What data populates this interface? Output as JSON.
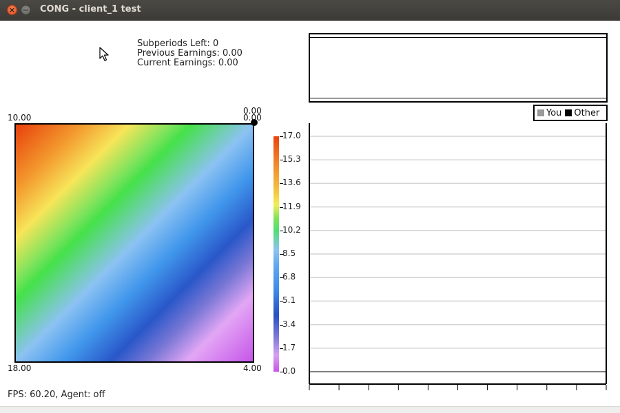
{
  "window": {
    "title": "CONG - client_1 test",
    "close_glyph": "×",
    "minimize_glyph": "−"
  },
  "info": {
    "subperiods_left": "Subperiods Left: 0",
    "previous_earnings": "Previous Earnings: 0.00",
    "current_earnings": "Current Earnings: 0.00"
  },
  "heatmap": {
    "top_left_label": "10.00",
    "top_right_label_1": "0.00",
    "top_right_label_2": "0.00",
    "bottom_left_label": "18.00",
    "bottom_right_label": "4.00",
    "colors": {
      "high": "#e8400c",
      "mid": "#45e14a",
      "low": "#c655e9"
    }
  },
  "colorbar": {
    "ticks": [
      "17.0",
      "15.3",
      "13.6",
      "11.9",
      "10.2",
      "8.5",
      "6.8",
      "5.1",
      "3.4",
      "1.7",
      "0.0"
    ]
  },
  "legend": {
    "you_label": "You",
    "other_label": "Other",
    "you_color": "#999999",
    "other_color": "#000000"
  },
  "chart_data": {
    "type": "line",
    "title": "",
    "xlabel": "",
    "ylabel": "",
    "ylim": [
      0,
      17
    ],
    "y_ticks": [
      "17.0",
      "15.3",
      "13.6",
      "11.9",
      "10.2",
      "8.5",
      "6.8",
      "5.1",
      "3.4",
      "1.7",
      "0.0"
    ],
    "x_tick_count": 11,
    "series": [
      {
        "name": "You",
        "values": []
      },
      {
        "name": "Other",
        "values": []
      }
    ],
    "grid": true
  },
  "status": {
    "text": "FPS: 60.20, Agent: off"
  }
}
